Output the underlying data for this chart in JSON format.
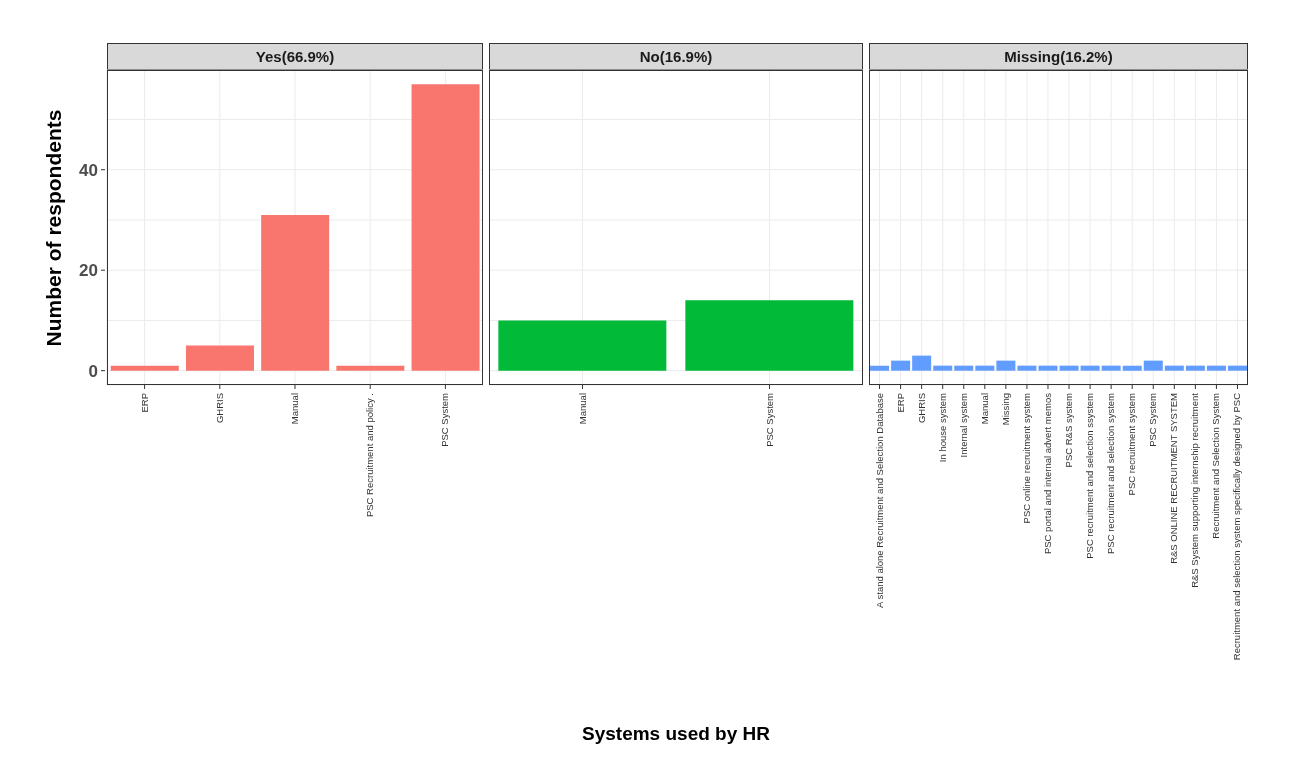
{
  "chart_data": [
    {
      "type": "bar",
      "title": "Yes(66.9%)",
      "ylabel": "Number of respondents",
      "categories": [
        "ERP",
        "GHRIS",
        "Manual",
        "PSC Recruitment and  policy .",
        "PSC System"
      ],
      "values": [
        1,
        5,
        31,
        1,
        57
      ],
      "color": "#f8766d",
      "ylim": [
        -2.85,
        59.85
      ],
      "yticks": [
        0,
        {
          "value": 10,
          "label": null
        },
        20,
        {
          "value": 30,
          "label": null
        },
        40,
        {
          "value": 50,
          "label": null
        }
      ],
      "grid": true
    },
    {
      "type": "bar",
      "title": "No(16.9%)",
      "xlabel": "Systems used by HR",
      "categories": [
        "Manual",
        "PSC System"
      ],
      "values": [
        10,
        14
      ],
      "color": "#00ba38",
      "ylim": [
        -2.85,
        59.85
      ],
      "yticks": [
        0,
        {
          "value": 10,
          "label": null
        },
        20,
        {
          "value": 30,
          "label": null
        },
        40,
        {
          "value": 50,
          "label": null
        }
      ],
      "grid": true,
      "tick_labels": "x"
    },
    {
      "type": "bar",
      "title": "Missing(16.2%)",
      "categories": [
        "A stand alone Recruitment and Selection Database",
        "ERP",
        "GHRIS",
        "In house system",
        "Internal system",
        "Manual",
        "Missing",
        "PSC online recruitment system",
        "PSC portal and internal advert memos",
        "PSC R&S system",
        "PSC recruitment and selection ssystem",
        "PSC recruitment and selection system",
        "PSC recruitment system",
        "PSC System",
        "R&S ONLINE RECRUITMENT SYSTEM",
        "R&S System supporting internship recruitment",
        "Recruitment and Selection System",
        "Recruitment and selection system specifically designed by PSC"
      ],
      "values": [
        1,
        2,
        3,
        1,
        1,
        1,
        2,
        1,
        1,
        1,
        1,
        1,
        1,
        2,
        1,
        1,
        1,
        1
      ],
      "color": "#619cff",
      "ylim": [
        -2.85,
        59.85
      ],
      "yticks": [
        0,
        {
          "value": 10,
          "label": null
        },
        20,
        {
          "value": 30,
          "label": null
        },
        40,
        {
          "value": 50,
          "label": null
        }
      ],
      "grid": true,
      "tick_labels": "x"
    }
  ]
}
